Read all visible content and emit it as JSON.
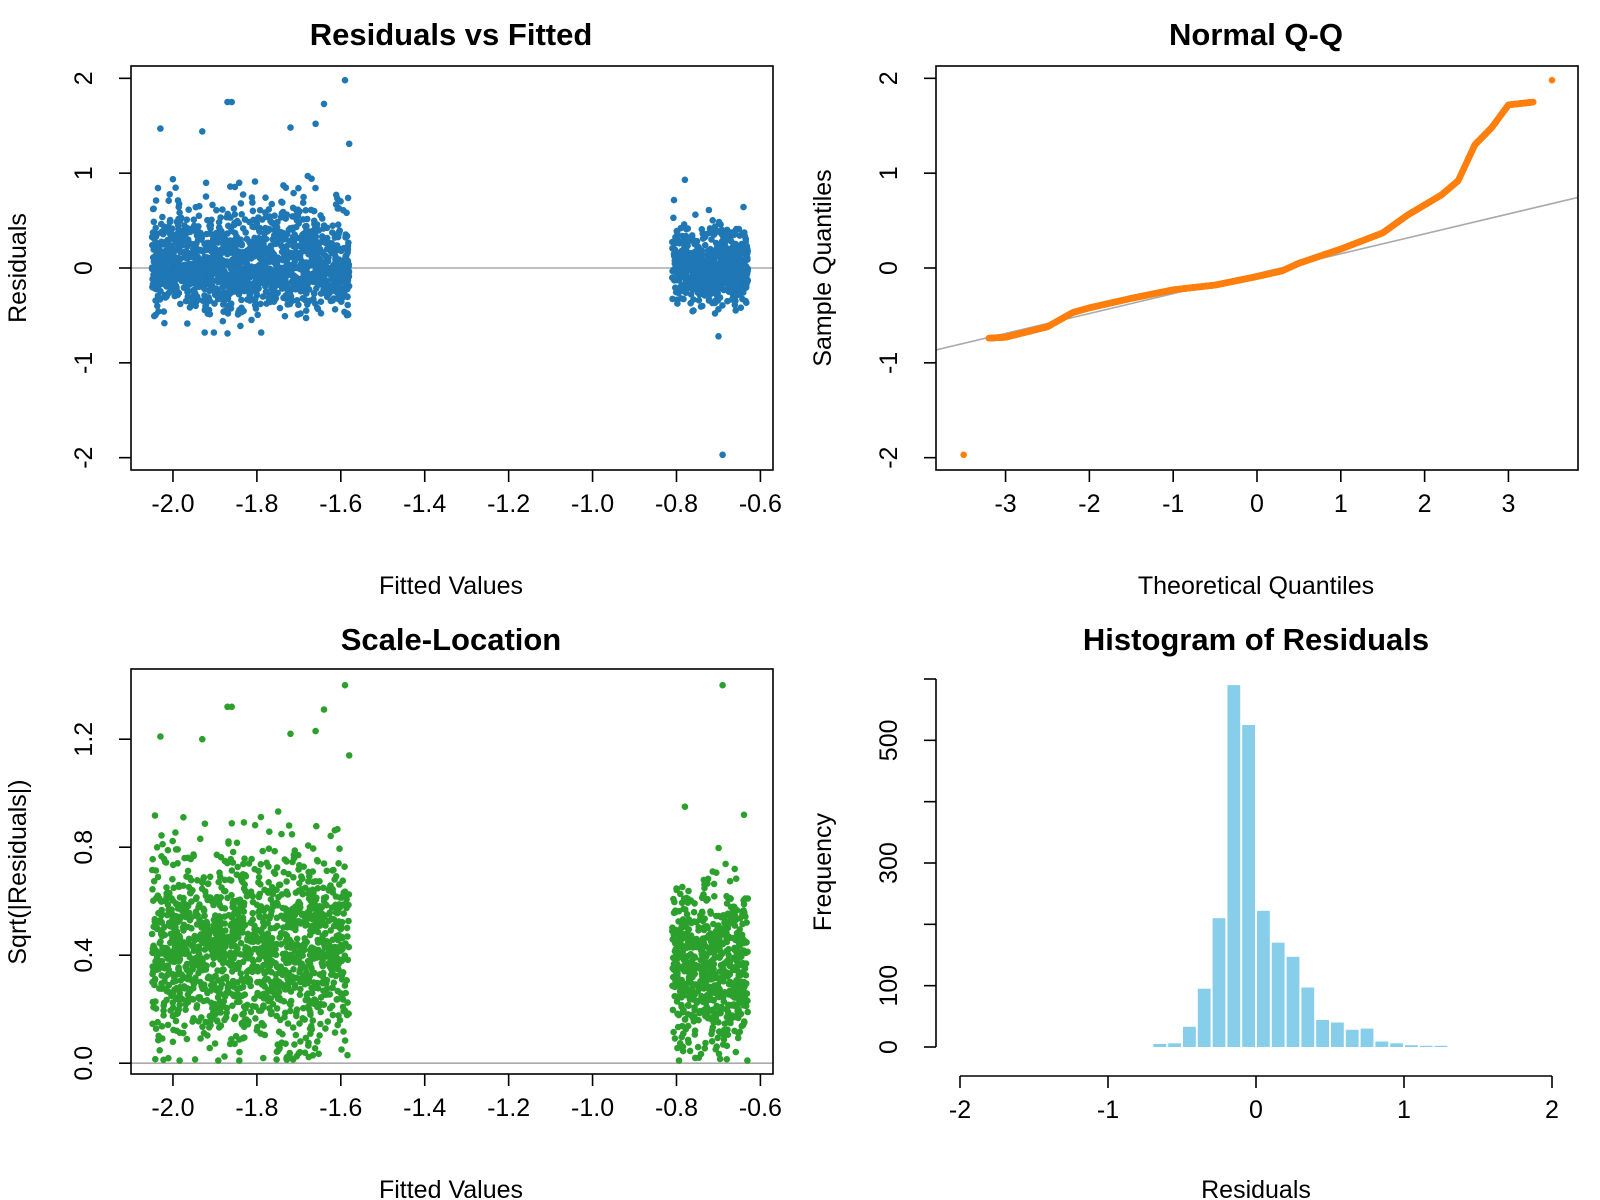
{
  "colors": {
    "residuals_points": "#1f77b4",
    "qq_points": "#ff7f0e",
    "scale_points": "#2ca02c",
    "histogram_bars": "#87ceeb",
    "reference_line": "#aaaaaa",
    "axes": "#000000"
  },
  "chart_data": [
    {
      "type": "scatter",
      "title": "Residuals vs Fitted",
      "xlabel": "Fitted Values",
      "ylabel": "Residuals",
      "xlim": [
        -2.1,
        -0.57
      ],
      "ylim": [
        -2.13,
        2.13
      ],
      "xticks": [
        -2.0,
        -1.8,
        -1.6,
        -1.4,
        -1.2,
        -1.0,
        -0.8,
        -0.6
      ],
      "xtick_labels": [
        "-2.0",
        "-1.8",
        "-1.6",
        "-1.4",
        "-1.2",
        "-1.0",
        "-0.8",
        "-0.6"
      ],
      "yticks": [
        -2,
        -1,
        0,
        1,
        2
      ],
      "ytick_labels": [
        "-2",
        "-1",
        "0",
        "1",
        "2"
      ],
      "reference_line": {
        "y": 0
      },
      "grid": false,
      "point_clusters": [
        {
          "x_range": [
            -2.05,
            -1.58
          ],
          "count": 1500,
          "y_center": 0.02,
          "y_spread": 0.25
        },
        {
          "x_range": [
            -0.81,
            -0.63
          ],
          "count": 650,
          "y_center": 0.0,
          "y_spread": 0.18
        }
      ],
      "notable_points": [
        {
          "x": -2.03,
          "y": 1.47
        },
        {
          "x": -1.93,
          "y": 1.44
        },
        {
          "x": -1.87,
          "y": 1.75
        },
        {
          "x": -1.86,
          "y": 1.75
        },
        {
          "x": -1.72,
          "y": 1.48
        },
        {
          "x": -1.66,
          "y": 1.52
        },
        {
          "x": -1.64,
          "y": 1.73
        },
        {
          "x": -1.59,
          "y": 1.98
        },
        {
          "x": -1.58,
          "y": 1.31
        },
        {
          "x": -0.78,
          "y": 0.93
        },
        {
          "x": -0.69,
          "y": -1.97
        },
        {
          "x": -1.87,
          "y": -0.69
        },
        {
          "x": -0.7,
          "y": -0.72
        }
      ]
    },
    {
      "type": "scatter",
      "title": "Normal Q-Q",
      "xlabel": "Theoretical Quantiles",
      "ylabel": "Sample Quantiles",
      "xlim": [
        -3.83,
        3.83
      ],
      "ylim": [
        -2.13,
        2.13
      ],
      "xticks": [
        -3,
        -2,
        -1,
        0,
        1,
        2,
        3
      ],
      "xtick_labels": [
        "-3",
        "-2",
        "-1",
        "0",
        "1",
        "2",
        "3"
      ],
      "yticks": [
        -2,
        -1,
        0,
        1,
        2
      ],
      "ytick_labels": [
        "-2",
        "-1",
        "0",
        "1",
        "2"
      ],
      "reference_line": {
        "intercept": -0.06,
        "slope": 0.21
      },
      "grid": false,
      "quantile_curve": [
        [
          -3.5,
          -1.97
        ],
        [
          -3.2,
          -0.74
        ],
        [
          -3.0,
          -0.73
        ],
        [
          -2.5,
          -0.62
        ],
        [
          -2.2,
          -0.47
        ],
        [
          -2.0,
          -0.42
        ],
        [
          -1.5,
          -0.32
        ],
        [
          -1.0,
          -0.23
        ],
        [
          -0.5,
          -0.18
        ],
        [
          0.0,
          -0.09
        ],
        [
          0.3,
          -0.03
        ],
        [
          0.5,
          0.05
        ],
        [
          1.0,
          0.2
        ],
        [
          1.5,
          0.37
        ],
        [
          1.8,
          0.56
        ],
        [
          2.2,
          0.77
        ],
        [
          2.4,
          0.92
        ],
        [
          2.6,
          1.3
        ],
        [
          2.8,
          1.48
        ],
        [
          3.0,
          1.72
        ],
        [
          3.3,
          1.75
        ],
        [
          3.52,
          1.98
        ]
      ]
    },
    {
      "type": "scatter",
      "title": "Scale-Location",
      "xlabel": "Fitted Values",
      "ylabel": "Sqrt(|Residuals|)",
      "xlim": [
        -2.1,
        -0.57
      ],
      "ylim": [
        -0.04,
        1.46
      ],
      "xticks": [
        -2.0,
        -1.8,
        -1.6,
        -1.4,
        -1.2,
        -1.0,
        -0.8,
        -0.6
      ],
      "xtick_labels": [
        "-2.0",
        "-1.8",
        "-1.6",
        "-1.4",
        "-1.2",
        "-1.0",
        "-0.8",
        "-0.6"
      ],
      "yticks": [
        0.0,
        0.4,
        0.8,
        1.2
      ],
      "ytick_labels": [
        "0.0",
        "0.4",
        "0.8",
        "1.2"
      ],
      "reference_line": {
        "y": 0
      },
      "grid": false,
      "point_clusters": [
        {
          "x_range": [
            -2.05,
            -1.58
          ],
          "count": 1500,
          "y_center": 0.42,
          "y_spread": 0.18
        },
        {
          "x_range": [
            -0.81,
            -0.63
          ],
          "count": 650,
          "y_center": 0.36,
          "y_spread": 0.15
        }
      ],
      "notable_points": [
        {
          "x": -2.03,
          "y": 1.21
        },
        {
          "x": -1.93,
          "y": 1.2
        },
        {
          "x": -1.87,
          "y": 1.32
        },
        {
          "x": -1.86,
          "y": 1.32
        },
        {
          "x": -1.72,
          "y": 1.22
        },
        {
          "x": -1.66,
          "y": 1.23
        },
        {
          "x": -1.64,
          "y": 1.31
        },
        {
          "x": -1.59,
          "y": 1.4
        },
        {
          "x": -1.58,
          "y": 1.14
        },
        {
          "x": -0.78,
          "y": 0.95
        },
        {
          "x": -0.69,
          "y": 1.4
        }
      ]
    },
    {
      "type": "bar",
      "title": "Histogram of Residuals",
      "xlabel": "Residuals",
      "ylabel": "Frequency",
      "xlim": [
        -2.0,
        2.0
      ],
      "ylim": [
        0,
        600
      ],
      "xticks": [
        -2,
        -1,
        0,
        1,
        2
      ],
      "xtick_labels": [
        "-2",
        "-1",
        "0",
        "1",
        "2"
      ],
      "yticks": [
        0,
        100,
        200,
        300,
        400,
        500,
        600
      ],
      "ytick_labels": [
        "0",
        "100",
        "",
        "300",
        "",
        "500",
        ""
      ],
      "grid": false,
      "bin_width": 0.1,
      "bin_starts": [
        -0.7,
        -0.6,
        -0.5,
        -0.4,
        -0.3,
        -0.2,
        -0.1,
        0.0,
        0.1,
        0.2,
        0.3,
        0.4,
        0.5,
        0.6,
        0.7,
        0.8,
        0.9,
        1.0,
        1.1,
        1.2
      ],
      "values": [
        5,
        6,
        33,
        95,
        210,
        590,
        525,
        222,
        170,
        147,
        97,
        44,
        40,
        28,
        30,
        9,
        6,
        3,
        2,
        2
      ]
    }
  ]
}
